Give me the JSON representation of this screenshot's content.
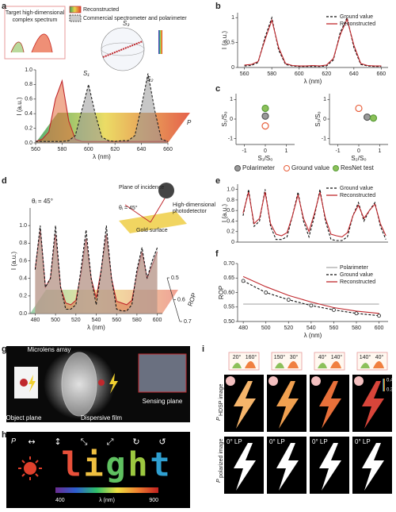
{
  "chart_data": [
    {
      "type": "line",
      "inset_title": [
        "Target high-dimensional",
        "complex spectrum"
      ],
      "annotations": [
        "S₃",
        "S₁",
        "S₂"
      ],
      "ylabel": "I (a.u.)",
      "xlabel": "λ (nm)",
      "zlabel": "P",
      "x": [
        560,
        565,
        570,
        575,
        580,
        585,
        590,
        595,
        600,
        605,
        610,
        615,
        620,
        625,
        630,
        635,
        640,
        645,
        650,
        655,
        660
      ],
      "xlim": [
        560,
        660
      ],
      "xticks": [
        560,
        580,
        600,
        620,
        640,
        660
      ],
      "ylim": [
        0,
        1
      ],
      "yticks": [
        {
          "value": 0,
          "label": "0.0"
        },
        0.2,
        0.4,
        0.6,
        0.8,
        {
          "value": 1,
          "label": "1.0"
        }
      ],
      "series": [
        {
          "name": "Reconstructed",
          "color": "#c0282d",
          "fill": "#e46a3a",
          "values": [
            0.02,
            0.05,
            0.15,
            0.6,
            0.85,
            0.3,
            0.05,
            0.02,
            0.02,
            0.02,
            0.02,
            0.02,
            0.02,
            0.02,
            0.02,
            0.02,
            0.02,
            0.02,
            0.02,
            0.02,
            0.02
          ]
        },
        {
          "name": "Commercial spectrometer and polarimeter",
          "color": "#222",
          "linestyle": "dashed",
          "fill": "#999",
          "values": [
            0.02,
            0.02,
            0.02,
            0.02,
            0.02,
            0.03,
            0.1,
            0.45,
            0.8,
            0.4,
            0.08,
            0.03,
            0.02,
            0.03,
            0.03,
            0.1,
            0.5,
            0.95,
            0.45,
            0.05,
            0.02
          ]
        }
      ]
    },
    {
      "type": "line",
      "ylabel": "I (a.u.)",
      "xlabel": "λ (nm)",
      "x": [
        560,
        565,
        570,
        575,
        580,
        585,
        590,
        595,
        600,
        605,
        610,
        615,
        620,
        625,
        630,
        635,
        640,
        645,
        650,
        655,
        660
      ],
      "xlim": [
        555,
        665
      ],
      "xticks": [
        560,
        580,
        600,
        620,
        640,
        660
      ],
      "ylim": [
        0,
        1.1
      ],
      "yticks": [
        0,
        0.5,
        1
      ],
      "legend": "upper right",
      "series": [
        {
          "name": "Ground value",
          "color": "#111",
          "linestyle": "dashed",
          "values": [
            0.03,
            0.04,
            0.1,
            0.6,
            1.0,
            0.35,
            0.06,
            0.03,
            0.02,
            0.02,
            0.02,
            0.02,
            0.03,
            0.15,
            0.7,
            1.0,
            0.4,
            0.06,
            0.03,
            0.02,
            0.02
          ]
        },
        {
          "name": "Reconstructed",
          "color": "#c0282d",
          "values": [
            0.05,
            0.06,
            0.12,
            0.55,
            0.95,
            0.4,
            0.08,
            0.04,
            0.03,
            0.03,
            0.04,
            0.03,
            0.05,
            0.18,
            0.65,
            0.97,
            0.45,
            0.08,
            0.04,
            0.03,
            0.03
          ]
        }
      ]
    },
    {
      "type": "scatter",
      "xlabel": "S₁/S₀",
      "ylabel": "S₂/S₀",
      "xlim": [
        -1.4,
        1.4
      ],
      "ylim": [
        -1.3,
        1.3
      ],
      "xticks": [
        -1,
        0,
        1
      ],
      "yticks": [
        -1,
        0,
        1
      ],
      "series": [
        {
          "name": "Polarimeter",
          "color": "#555",
          "facecolor": "#9a9a9a",
          "x": [
            0
          ],
          "y": [
            0.15
          ]
        },
        {
          "name": "Ground value",
          "color": "#e8603c",
          "facecolor": "none",
          "x": [
            0
          ],
          "y": [
            -0.35
          ]
        },
        {
          "name": "ResNet test",
          "color": "#5a9e3a",
          "facecolor": "#8cc05a",
          "x": [
            0
          ],
          "y": [
            0.55
          ]
        }
      ]
    },
    {
      "type": "scatter",
      "xlabel": "S₂/S₀",
      "ylabel": "S₃/S₀",
      "xlim": [
        -1.4,
        1.4
      ],
      "ylim": [
        -1.3,
        1.3
      ],
      "xticks": [
        -1,
        0,
        1
      ],
      "yticks": [
        -1,
        0,
        1
      ],
      "series": [
        {
          "color": "#555",
          "facecolor": "#9a9a9a",
          "x": [
            0.4
          ],
          "y": [
            0.1
          ]
        },
        {
          "color": "#e8603c",
          "facecolor": "none",
          "x": [
            0
          ],
          "y": [
            0.55
          ]
        },
        {
          "color": "#5a9e3a",
          "facecolor": "#8cc05a",
          "x": [
            0.7
          ],
          "y": [
            0.05
          ]
        }
      ]
    },
    {
      "type": "line",
      "title": "θᵢ = 45°",
      "annotations": [
        "Plane of incidence",
        "θᵢ = 45°",
        "Gold surface",
        "High-dimensional",
        "photodetector"
      ],
      "ylabel": "I (a.u.)",
      "xlabel": "λ (nm)",
      "zlabel": "ROP",
      "zlim": [
        0.5,
        0.7
      ],
      "zticks": [
        0.5,
        0.6,
        0.7
      ],
      "x": [
        480,
        485,
        490,
        495,
        500,
        505,
        510,
        515,
        520,
        525,
        530,
        535,
        540,
        545,
        550,
        555,
        560,
        565,
        570,
        575,
        580,
        585,
        590,
        595,
        600
      ],
      "xlim": [
        475,
        605
      ],
      "xticks": [
        480,
        500,
        520,
        540,
        560,
        580,
        600
      ],
      "ylim": [
        0,
        1.2
      ],
      "yticks": [
        {
          "value": 0,
          "label": "0.0"
        },
        0.2,
        0.4,
        0.6,
        0.8,
        {
          "value": 1,
          "label": "1.0"
        }
      ],
      "series": [
        {
          "name": "Reconstructed",
          "color": "#c0282d",
          "fill": "#d9714a",
          "values": [
            0.5,
            0.95,
            0.3,
            0.4,
            0.9,
            0.3,
            0.12,
            0.1,
            0.15,
            0.45,
            0.85,
            0.4,
            0.18,
            0.5,
            0.9,
            0.4,
            0.14,
            0.12,
            0.1,
            0.15,
            0.45,
            0.7,
            0.4,
            0.55,
            0.7
          ]
        },
        {
          "name": "Ground value",
          "color": "#111",
          "linestyle": "dashed",
          "fill": "#aaa",
          "values": [
            0.5,
            1.0,
            0.3,
            0.4,
            1.0,
            0.3,
            0.05,
            0.05,
            0.1,
            0.5,
            0.95,
            0.4,
            0.1,
            0.5,
            1.0,
            0.4,
            0.05,
            0.03,
            0.03,
            0.1,
            0.5,
            0.75,
            0.4,
            0.6,
            0.75
          ]
        }
      ]
    },
    {
      "type": "line",
      "ylabel": "I (a.u.)",
      "x": [
        480,
        485,
        490,
        495,
        500,
        505,
        510,
        515,
        520,
        525,
        530,
        535,
        540,
        545,
        550,
        555,
        560,
        565,
        570,
        575,
        580,
        585,
        590,
        595,
        600,
        605,
        610
      ],
      "xlim": [
        475,
        612
      ],
      "ylim": [
        0,
        1.1
      ],
      "yticks": [
        0,
        0.2,
        0.4,
        0.6,
        0.8,
        {
          "value": 1,
          "label": "1.0"
        }
      ],
      "legend": "upper right",
      "series": [
        {
          "name": "Ground value",
          "color": "#111",
          "linestyle": "dashed",
          "values": [
            0.5,
            1.0,
            0.3,
            0.4,
            1.0,
            0.3,
            0.05,
            0.05,
            0.1,
            0.5,
            0.95,
            0.4,
            0.1,
            0.5,
            1.0,
            0.4,
            0.05,
            0.03,
            0.03,
            0.1,
            0.5,
            0.75,
            0.4,
            0.6,
            0.75,
            0.3,
            0.05
          ]
        },
        {
          "name": "Reconstructed",
          "color": "#c0282d",
          "values": [
            0.55,
            0.95,
            0.35,
            0.45,
            0.95,
            0.35,
            0.15,
            0.12,
            0.18,
            0.5,
            0.9,
            0.45,
            0.2,
            0.55,
            0.95,
            0.45,
            0.15,
            0.12,
            0.1,
            0.18,
            0.5,
            0.7,
            0.45,
            0.6,
            0.72,
            0.35,
            0.12
          ]
        }
      ]
    },
    {
      "type": "line",
      "ylabel": "ROP",
      "xlabel": "λ (nm)",
      "x": [
        480,
        500,
        520,
        540,
        560,
        580,
        600
      ],
      "xlim": [
        475,
        608
      ],
      "xticks": [
        480,
        500,
        520,
        540,
        560,
        580,
        600
      ],
      "ylim": [
        0.5,
        0.7
      ],
      "yticks": [
        {
          "value": 0.5,
          "label": "0.50"
        },
        0.55,
        {
          "value": 0.6,
          "label": "0.60"
        },
        0.65,
        {
          "value": 0.7,
          "label": "0.70"
        }
      ],
      "legend": "upper right",
      "series": [
        {
          "name": "Polarimeter",
          "color": "#aaa",
          "values": [
            0.56,
            0.56,
            0.56,
            0.56,
            0.56,
            0.56,
            0.56
          ]
        },
        {
          "name": "Ground value",
          "color": "#111",
          "linestyle": "dashed",
          "marker": "circle",
          "values": [
            0.64,
            0.6,
            0.575,
            0.555,
            0.54,
            0.528,
            0.52
          ]
        },
        {
          "name": "Reconstructed",
          "color": "#c0282d",
          "values": [
            0.655,
            0.62,
            0.59,
            0.567,
            0.548,
            0.536,
            0.528
          ]
        }
      ]
    }
  ],
  "figure": {
    "panel_labels": [
      "a",
      "b",
      "c",
      "d",
      "e",
      "f",
      "g",
      "h",
      "i"
    ],
    "g": {
      "labels": [
        "Microlens array",
        "Object plane",
        "Dispersive film",
        "Sensing plane"
      ]
    },
    "h": {
      "symbol": "P",
      "polarizations": [
        "↔",
        "↕",
        "⤡",
        "⤢",
        "↻",
        "↺"
      ],
      "letters": [
        {
          "char": "l",
          "color": "#e8503a"
        },
        {
          "char": "i",
          "color": "#f0c040"
        },
        {
          "char": "g",
          "color": "#5fc060"
        },
        {
          "char": "h",
          "color": "#9cc840"
        },
        {
          "char": "t",
          "color": "#2f9fd0"
        }
      ],
      "colorbar": {
        "min": 400,
        "label": "λ (nm)",
        "max": 900
      }
    },
    "i": {
      "angles": [
        [
          "20°",
          "160°"
        ],
        [
          "150°",
          "30°"
        ],
        [
          "40°",
          "140°"
        ],
        [
          "140°",
          "40°"
        ]
      ],
      "rows": [
        {
          "symbol": "P",
          "sub": "HDSP image"
        },
        {
          "symbol": "P",
          "sub": "polarized image"
        }
      ],
      "lp_labels": [
        "0° LP",
        "0° LP",
        "0° LP",
        "0° LP"
      ],
      "scale": [
        0.4,
        0.3
      ],
      "bolt_colors": [
        "#f5b56b",
        "#f0a050",
        "#e8703a",
        "#d8453a"
      ]
    }
  }
}
